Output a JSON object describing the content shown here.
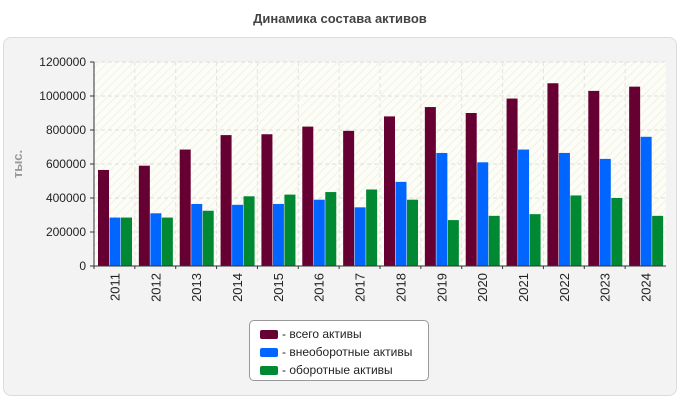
{
  "chart_data": {
    "type": "bar",
    "title": "Динамика состава активов",
    "ylabel": "тыс.",
    "xlabel": "",
    "ylim": [
      0,
      1200000
    ],
    "yticks": [
      0,
      200000,
      400000,
      600000,
      800000,
      1000000,
      1200000
    ],
    "grid": true,
    "legend_position": "bottom-center",
    "categories": [
      "2011",
      "2012",
      "2013",
      "2014",
      "2015",
      "2016",
      "2017",
      "2018",
      "2019",
      "2020",
      "2021",
      "2022",
      "2023",
      "2024"
    ],
    "series": [
      {
        "name": "- всего активы",
        "color": "#660033",
        "values": [
          565000,
          590000,
          685000,
          770000,
          775000,
          820000,
          795000,
          880000,
          935000,
          900000,
          985000,
          1075000,
          1030000,
          1055000
        ]
      },
      {
        "name": "- внеоборотные активы",
        "color": "#0066ff",
        "values": [
          285000,
          310000,
          365000,
          360000,
          365000,
          390000,
          345000,
          495000,
          665000,
          610000,
          685000,
          665000,
          630000,
          760000
        ]
      },
      {
        "name": "- оборотные активы",
        "color": "#008833",
        "values": [
          285000,
          285000,
          325000,
          410000,
          420000,
          435000,
          450000,
          390000,
          270000,
          295000,
          305000,
          415000,
          400000,
          295000
        ]
      }
    ]
  }
}
